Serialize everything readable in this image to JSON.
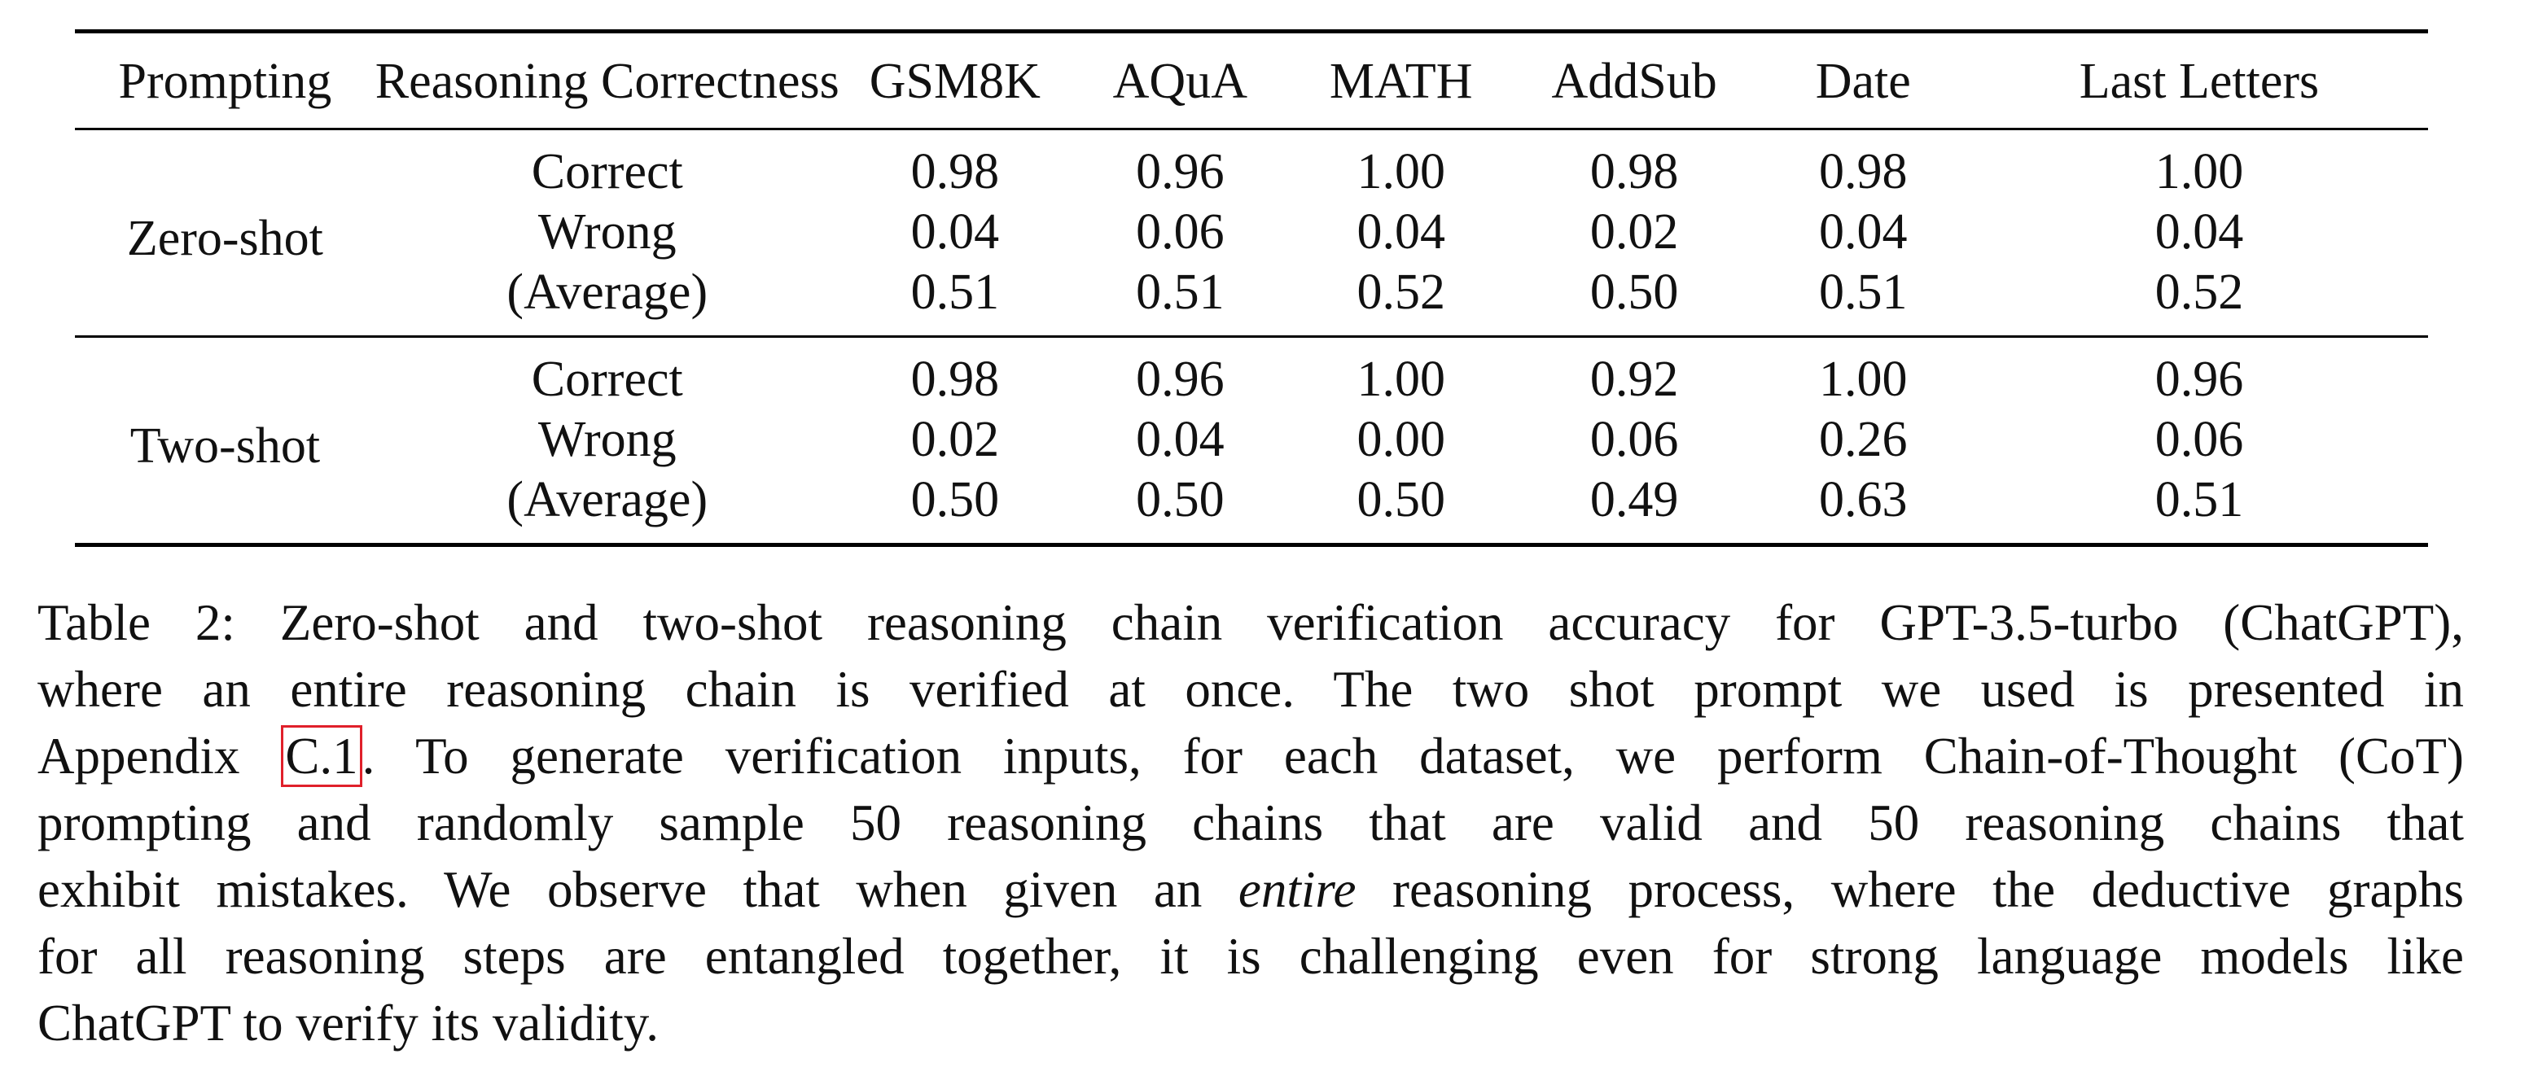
{
  "table": {
    "headers": [
      "Prompting",
      "Reasoning Correctness",
      "GSM8K",
      "AQuA",
      "MATH",
      "AddSub",
      "Date",
      "Last Letters"
    ],
    "groups": [
      {
        "prompting": "Zero-shot",
        "rows": [
          {
            "label": "Correct",
            "values": [
              "0.98",
              "0.96",
              "1.00",
              "0.98",
              "0.98",
              "1.00"
            ]
          },
          {
            "label": "Wrong",
            "values": [
              "0.04",
              "0.06",
              "0.04",
              "0.02",
              "0.04",
              "0.04"
            ]
          },
          {
            "label": "(Average)",
            "values": [
              "0.51",
              "0.51",
              "0.52",
              "0.50",
              "0.51",
              "0.52"
            ]
          }
        ]
      },
      {
        "prompting": "Two-shot",
        "rows": [
          {
            "label": "Correct",
            "values": [
              "0.98",
              "0.96",
              "1.00",
              "0.92",
              "1.00",
              "0.96"
            ]
          },
          {
            "label": "Wrong",
            "values": [
              "0.02",
              "0.04",
              "0.00",
              "0.06",
              "0.26",
              "0.06"
            ]
          },
          {
            "label": "(Average)",
            "values": [
              "0.50",
              "0.50",
              "0.50",
              "0.49",
              "0.63",
              "0.51"
            ]
          }
        ]
      }
    ]
  },
  "caption": {
    "line1": "Table 2: Zero-shot and two-shot reasoning chain verification accuracy for GPT-3.5-turbo (ChatGPT),",
    "line2": "where an entire reasoning chain is verified at once. The two shot prompt we used is presented in",
    "line3_pre": "Appendix ",
    "line3_ref": "C.1",
    "line3_post": ". To generate verification inputs, for each dataset, we perform Chain-of-Thought (CoT)",
    "line4": "prompting and randomly sample 50 reasoning chains that are valid and 50 reasoning chains that",
    "line5_pre": "exhibit mistakes. We observe that when given an ",
    "line5_em": "entire",
    "line5_post": " reasoning process, where the deductive graphs",
    "line6": "for all reasoning steps are entangled together, it is challenging even for strong language models like",
    "line7": "ChatGPT to verify its validity.",
    "ref_color": "#e0202a"
  }
}
